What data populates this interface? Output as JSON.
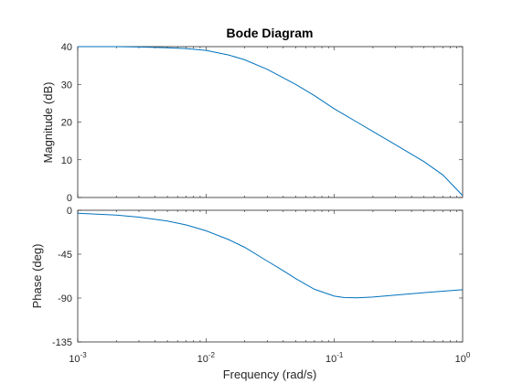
{
  "chart_data": {
    "type": "line",
    "title": "Bode Diagram",
    "xlabel": "Frequency  (rad/s)",
    "x_scale": "log",
    "xlim": [
      0.001,
      1
    ],
    "x_ticks": [
      {
        "base": "10",
        "exp": "-3"
      },
      {
        "base": "10",
        "exp": "-2"
      },
      {
        "base": "10",
        "exp": "-1"
      },
      {
        "base": "10",
        "exp": "0"
      }
    ],
    "grid": false,
    "line_color": "#0072BD",
    "panels": [
      {
        "name": "magnitude",
        "ylabel": "Magnitude (dB)",
        "ylim": [
          0,
          40
        ],
        "y_ticks": [
          "0",
          "10",
          "20",
          "30",
          "40"
        ],
        "x": [
          0.001,
          0.002,
          0.003,
          0.005,
          0.007,
          0.01,
          0.015,
          0.02,
          0.03,
          0.05,
          0.07,
          0.1,
          0.15,
          0.2,
          0.3,
          0.5,
          0.7,
          1.0
        ],
        "y": [
          40.0,
          40.0,
          39.9,
          39.7,
          39.5,
          39.0,
          37.8,
          36.5,
          34.0,
          30.0,
          27.0,
          23.5,
          20.0,
          17.5,
          14.0,
          9.5,
          6.0,
          0.5
        ]
      },
      {
        "name": "phase",
        "ylabel": "Phase (deg)",
        "ylim": [
          -135,
          0
        ],
        "y_ticks": [
          "-135",
          "-90",
          "-45",
          "0"
        ],
        "x": [
          0.001,
          0.002,
          0.003,
          0.005,
          0.007,
          0.01,
          0.015,
          0.02,
          0.03,
          0.04,
          0.05,
          0.07,
          0.1,
          0.12,
          0.15,
          0.2,
          0.3,
          0.5,
          0.7,
          1.0
        ],
        "y": [
          -3,
          -5,
          -7,
          -11,
          -15,
          -21,
          -30,
          -38,
          -52,
          -62,
          -70,
          -81,
          -88,
          -89.5,
          -89.7,
          -89,
          -87,
          -84.5,
          -83,
          -81.5
        ]
      }
    ]
  }
}
